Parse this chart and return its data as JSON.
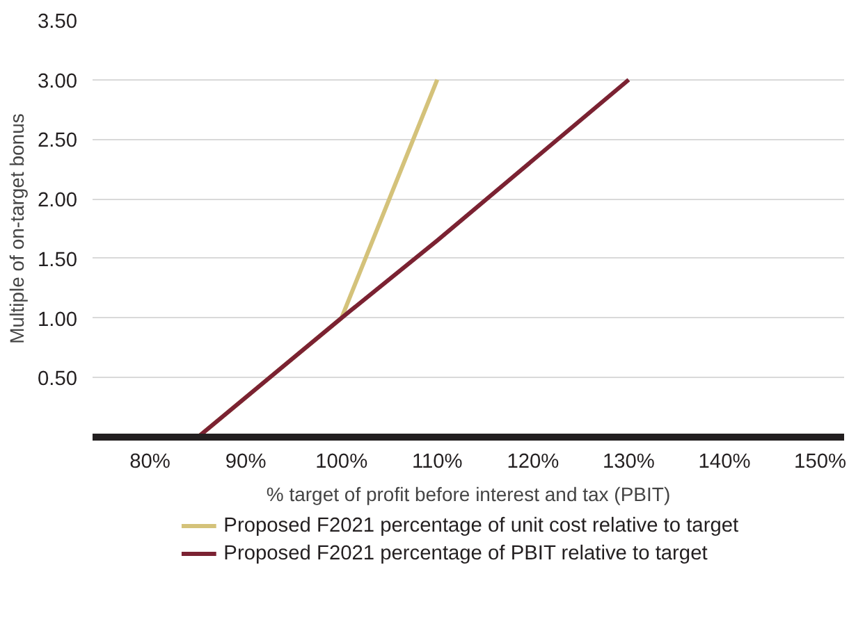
{
  "chart_data": {
    "type": "line",
    "xlabel": "% target of profit before interest and tax (PBIT)",
    "ylabel": "Multiple of on-target bonus",
    "series": [
      {
        "name": "Proposed F2021 percentage of unit cost relative to target",
        "color": "#d4c27a",
        "x": [
          85,
          100,
          110
        ],
        "values": [
          0,
          1,
          3
        ]
      },
      {
        "name": "Proposed F2021 percentage of PBIT relative to target",
        "color": "#7b2232",
        "x": [
          85,
          100,
          110,
          130
        ],
        "values": [
          0,
          1,
          1.65,
          3
        ]
      }
    ],
    "xlim": [
      74,
      152.5
    ],
    "ylim": [
      0,
      3.5
    ],
    "xticks": [
      {
        "value": 80,
        "label": "80%"
      },
      {
        "value": 90,
        "label": "90%"
      },
      {
        "value": 100,
        "label": "100%"
      },
      {
        "value": 110,
        "label": "110%"
      },
      {
        "value": 120,
        "label": "120%"
      },
      {
        "value": 130,
        "label": "130%"
      },
      {
        "value": 140,
        "label": "140%"
      },
      {
        "value": 150,
        "label": "150%"
      }
    ],
    "yticks": [
      {
        "value": 0.5,
        "label": "0.50"
      },
      {
        "value": 1,
        "label": "1.00"
      },
      {
        "value": 1.5,
        "label": "1.50"
      },
      {
        "value": 2,
        "label": "2.00"
      },
      {
        "value": 2.5,
        "label": "2.50"
      },
      {
        "value": 3,
        "label": "3.00"
      },
      {
        "value": 3.5,
        "label": "3.50"
      }
    ],
    "grid": "y",
    "legend": "bottom",
    "marker": "none",
    "line_style": "solid"
  }
}
